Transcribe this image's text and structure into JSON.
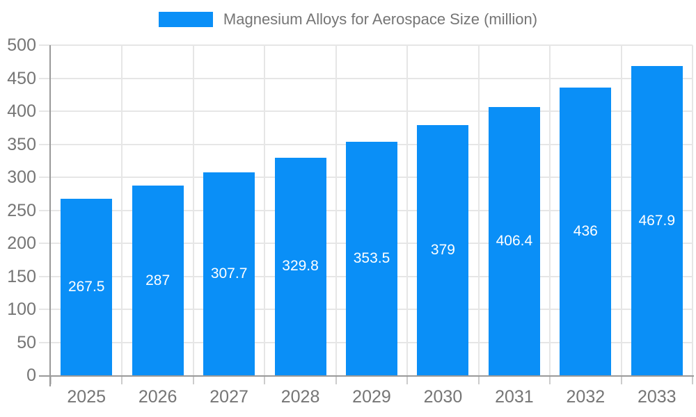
{
  "legend": {
    "label": "Magnesium Alloys for Aerospace Size (million)",
    "swatch_color": "#0a8ff7"
  },
  "chart_data": {
    "type": "bar",
    "title": "Magnesium Alloys for Aerospace Size (million)",
    "categories": [
      "2025",
      "2026",
      "2027",
      "2028",
      "2029",
      "2030",
      "2031",
      "2032",
      "2033"
    ],
    "values": [
      267.5,
      287,
      307.7,
      329.8,
      353.5,
      379,
      406.4,
      436,
      467.9
    ],
    "value_labels": [
      "267.5",
      "287",
      "307.7",
      "329.8",
      "353.5",
      "379",
      "406.4",
      "436",
      "467.9"
    ],
    "xlabel": "",
    "ylabel": "",
    "ylim": [
      0,
      500
    ],
    "y_ticks": [
      0,
      50,
      100,
      150,
      200,
      250,
      300,
      350,
      400,
      450,
      500
    ],
    "grid": true,
    "legend_position": "top-center",
    "value_label_position": "inside-center"
  },
  "colors": {
    "bar": "#0a8ff7",
    "axis_line": "#999999",
    "grid_line": "#e6e6e6",
    "tick_line": "#cccccc",
    "axis_text": "#757575",
    "bar_label_text": "#ffffff",
    "background": "#ffffff"
  }
}
